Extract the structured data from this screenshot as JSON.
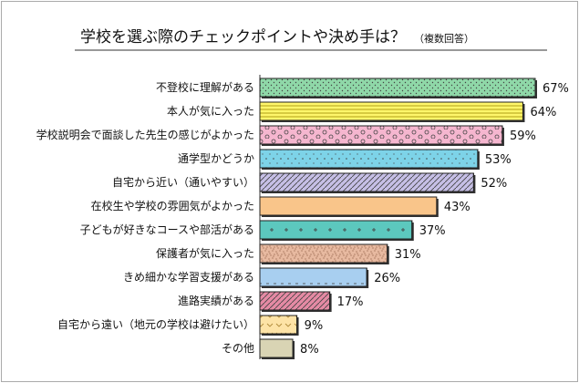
{
  "chart_data": {
    "type": "bar",
    "orientation": "horizontal",
    "title": "学校を選ぶ際のチェックポイントや決め手は？",
    "subtitle": "（複数回答）",
    "unit": "%",
    "grid": false,
    "xlim": [
      0,
      67
    ],
    "categories": [
      "不登校に理解がある",
      "本人が気に入った",
      "学校説明会で面談した先生の感じがよかった",
      "通学型かどうか",
      "自宅から近い（通いやすい）",
      "在校生や学校の雰囲気がよかった",
      "子どもが好きなコースや部活がある",
      "保護者が気に入った",
      "きめ細かな学習支援がある",
      "進路実績がある",
      "自宅から遠い（地元の学校は避けたい）",
      "その他"
    ],
    "values": [
      67,
      64,
      59,
      53,
      52,
      43,
      37,
      31,
      26,
      17,
      9,
      8
    ],
    "value_labels": [
      "67%",
      "64%",
      "59%",
      "53%",
      "52%",
      "43%",
      "37%",
      "31%",
      "26%",
      "17%",
      "9%",
      "8%"
    ],
    "colors": [
      "#8fd8a8",
      "#fff66a",
      "#f5b6cf",
      "#7dd3e8",
      "#c6bfe6",
      "#f9c58a",
      "#5cc8be",
      "#e7b9a0",
      "#a8cff0",
      "#e58aa4",
      "#fde3a6",
      "#d9d4b4"
    ],
    "patterns": [
      "dots",
      "hlines",
      "circles",
      "sparse-dots",
      "diagonal",
      "none",
      "plus",
      "noise",
      "ticks",
      "diagonal",
      "chevron",
      "none"
    ]
  }
}
